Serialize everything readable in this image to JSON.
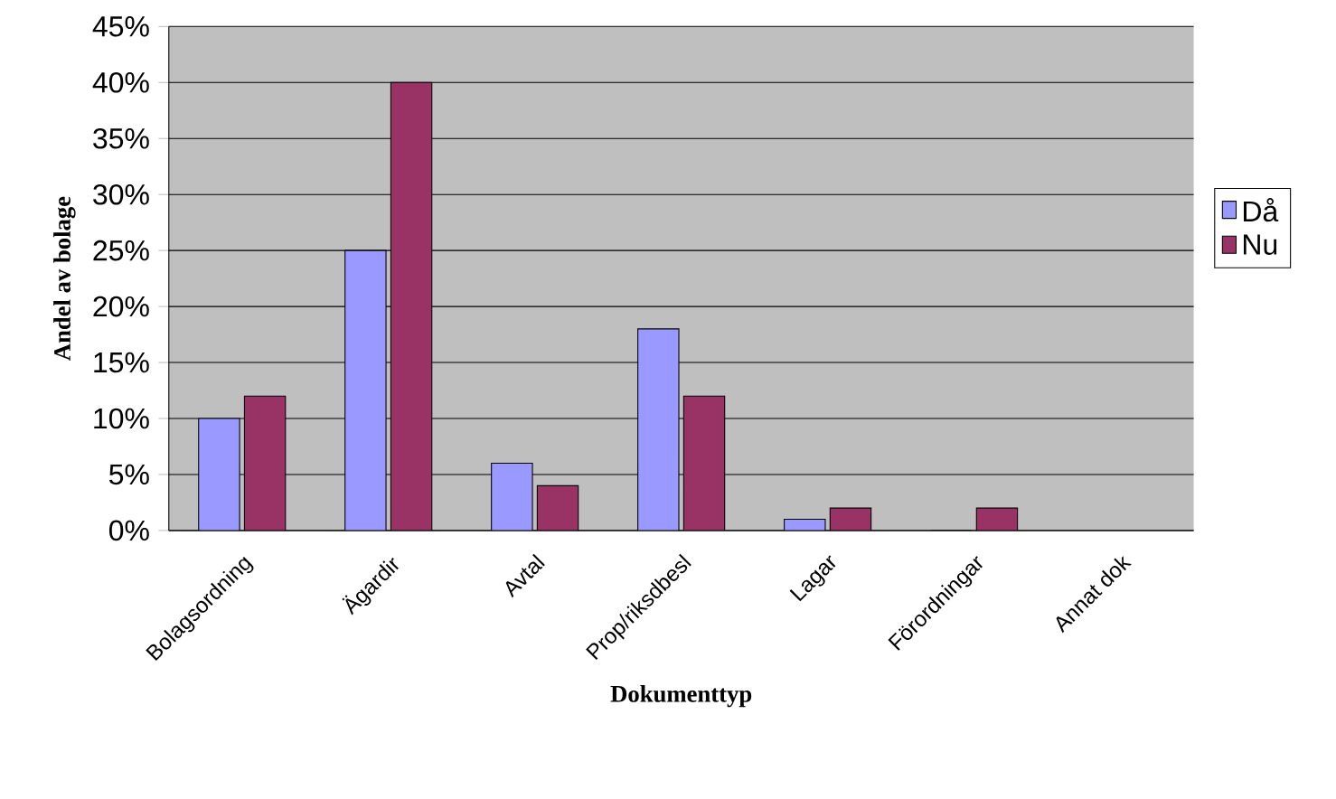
{
  "chart_data": {
    "type": "bar",
    "xlabel": "Dokumenttyp",
    "ylabel": "Andel av bolage",
    "categories": [
      "Bolagsordning",
      "Ägardir",
      "Avtal",
      "Prop/riksdbesl",
      "Lagar",
      "Förordningar",
      "Annat dok"
    ],
    "series": [
      {
        "name": "Då",
        "color": "#9999ff",
        "values": [
          10,
          25,
          6,
          18,
          1,
          0,
          null
        ]
      },
      {
        "name": "Nu",
        "color": "#993366",
        "values": [
          12,
          40,
          4,
          12,
          2,
          2,
          null
        ]
      }
    ],
    "ylim": [
      0,
      45
    ],
    "yticks": [
      {
        "value": 0,
        "label": "0%"
      },
      {
        "value": 5,
        "label": "5%"
      },
      {
        "value": 10,
        "label": "10%"
      },
      {
        "value": 15,
        "label": "15%"
      },
      {
        "value": 20,
        "label": "20%"
      },
      {
        "value": 25,
        "label": "25%"
      },
      {
        "value": 30,
        "label": "30%"
      },
      {
        "value": 35,
        "label": "35%"
      },
      {
        "value": 40,
        "label": "40%"
      },
      {
        "value": 45,
        "label": "45%"
      }
    ],
    "grid": "y",
    "legend": "right"
  }
}
